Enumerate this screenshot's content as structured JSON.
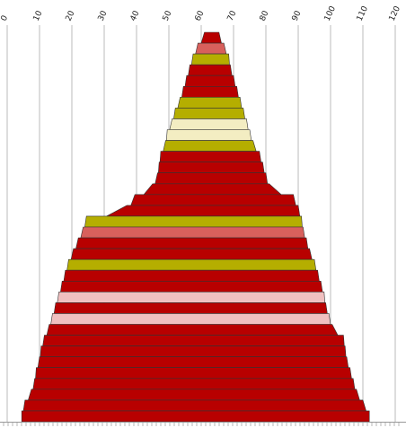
{
  "chart_data": {
    "type": "area",
    "xlim": [
      0,
      120
    ],
    "x_ticks": [
      0,
      10,
      20,
      30,
      40,
      50,
      60,
      70,
      80,
      90,
      100,
      110,
      120
    ],
    "grid": true,
    "colors": {
      "red": "#B80000",
      "light_red": "#D8605C",
      "olive": "#B5AE00",
      "cream": "#F3EDC2",
      "pink": "#F0C0C0",
      "outline": "#333333",
      "grid": "#BBBBBB"
    },
    "bands": [
      {
        "left": 61.0,
        "right": 65.5,
        "color": "red"
      },
      {
        "left": 59.0,
        "right": 67.0,
        "color": "light_red"
      },
      {
        "left": 57.5,
        "right": 68.5,
        "color": "olive"
      },
      {
        "left": 56.5,
        "right": 69.0,
        "color": "red"
      },
      {
        "left": 55.5,
        "right": 70.0,
        "color": "red"
      },
      {
        "left": 54.5,
        "right": 71.0,
        "color": "red"
      },
      {
        "left": 53.5,
        "right": 72.0,
        "color": "olive"
      },
      {
        "left": 52.0,
        "right": 73.0,
        "color": "olive"
      },
      {
        "left": 51.0,
        "right": 74.0,
        "color": "cream"
      },
      {
        "left": 49.5,
        "right": 75.0,
        "color": "cream"
      },
      {
        "left": 49.0,
        "right": 76.0,
        "color": "olive"
      },
      {
        "left": 47.5,
        "right": 78.0,
        "color": "red"
      },
      {
        "left": 47.0,
        "right": 79.0,
        "color": "red"
      },
      {
        "left": 46.5,
        "right": 80.0,
        "color": "red"
      },
      {
        "left": 45.0,
        "right": 81.0,
        "color": "red"
      },
      {
        "left": 39.5,
        "right": 88.5,
        "color": "red"
      },
      {
        "left": 37.0,
        "right": 90.0,
        "color": "red"
      },
      {
        "left": 24.5,
        "right": 91.0,
        "color": "olive"
      },
      {
        "left": 23.5,
        "right": 91.5,
        "color": "light_red"
      },
      {
        "left": 22.0,
        "right": 92.5,
        "color": "red"
      },
      {
        "left": 20.5,
        "right": 93.5,
        "color": "red"
      },
      {
        "left": 19.0,
        "right": 95.0,
        "color": "olive"
      },
      {
        "left": 18.0,
        "right": 96.0,
        "color": "red"
      },
      {
        "left": 17.0,
        "right": 97.0,
        "color": "red"
      },
      {
        "left": 16.0,
        "right": 98.0,
        "color": "pink"
      },
      {
        "left": 15.0,
        "right": 98.5,
        "color": "red"
      },
      {
        "left": 14.0,
        "right": 99.5,
        "color": "pink"
      },
      {
        "left": 13.0,
        "right": 100.5,
        "color": "red"
      },
      {
        "left": 11.5,
        "right": 104.0,
        "color": "red"
      },
      {
        "left": 10.5,
        "right": 104.5,
        "color": "red"
      },
      {
        "left": 10.0,
        "right": 105.0,
        "color": "red"
      },
      {
        "left": 9.0,
        "right": 106.0,
        "color": "red"
      },
      {
        "left": 8.5,
        "right": 107.0,
        "color": "red"
      },
      {
        "left": 7.5,
        "right": 108.0,
        "color": "red"
      },
      {
        "left": 5.5,
        "right": 110.0,
        "color": "red"
      },
      {
        "left": 4.5,
        "right": 112.0,
        "color": "red"
      }
    ]
  }
}
